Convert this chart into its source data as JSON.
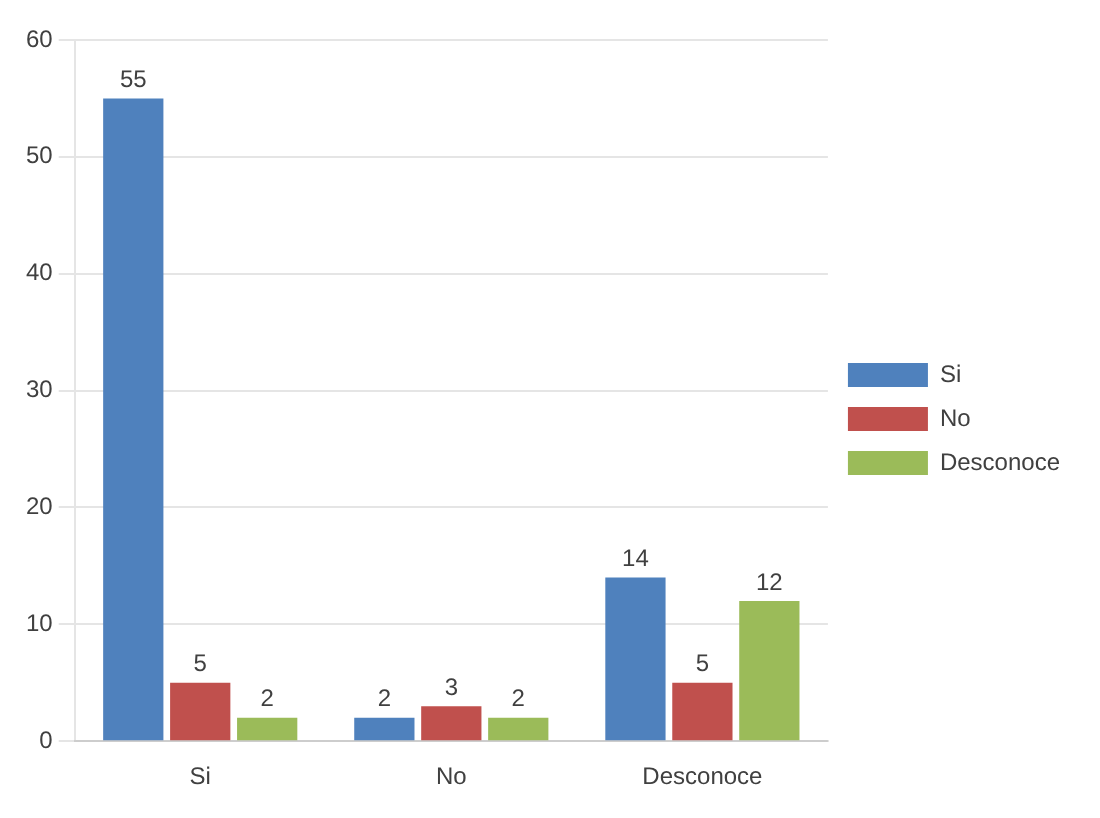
{
  "chart_data": {
    "type": "bar",
    "categories": [
      "Si",
      "No",
      "Desconoce"
    ],
    "series": [
      {
        "name": "Si",
        "color": "#4f81bd",
        "values": [
          55,
          2,
          14
        ]
      },
      {
        "name": "No",
        "color": "#c0504d",
        "values": [
          5,
          3,
          5
        ]
      },
      {
        "name": "Desconoce",
        "color": "#9bbb59",
        "values": [
          2,
          2,
          12
        ]
      }
    ],
    "ylim": [
      0,
      60
    ],
    "yticks": [
      0,
      10,
      20,
      30,
      40,
      50,
      60
    ],
    "grid": "y",
    "legend": "right",
    "data_labels": true
  }
}
